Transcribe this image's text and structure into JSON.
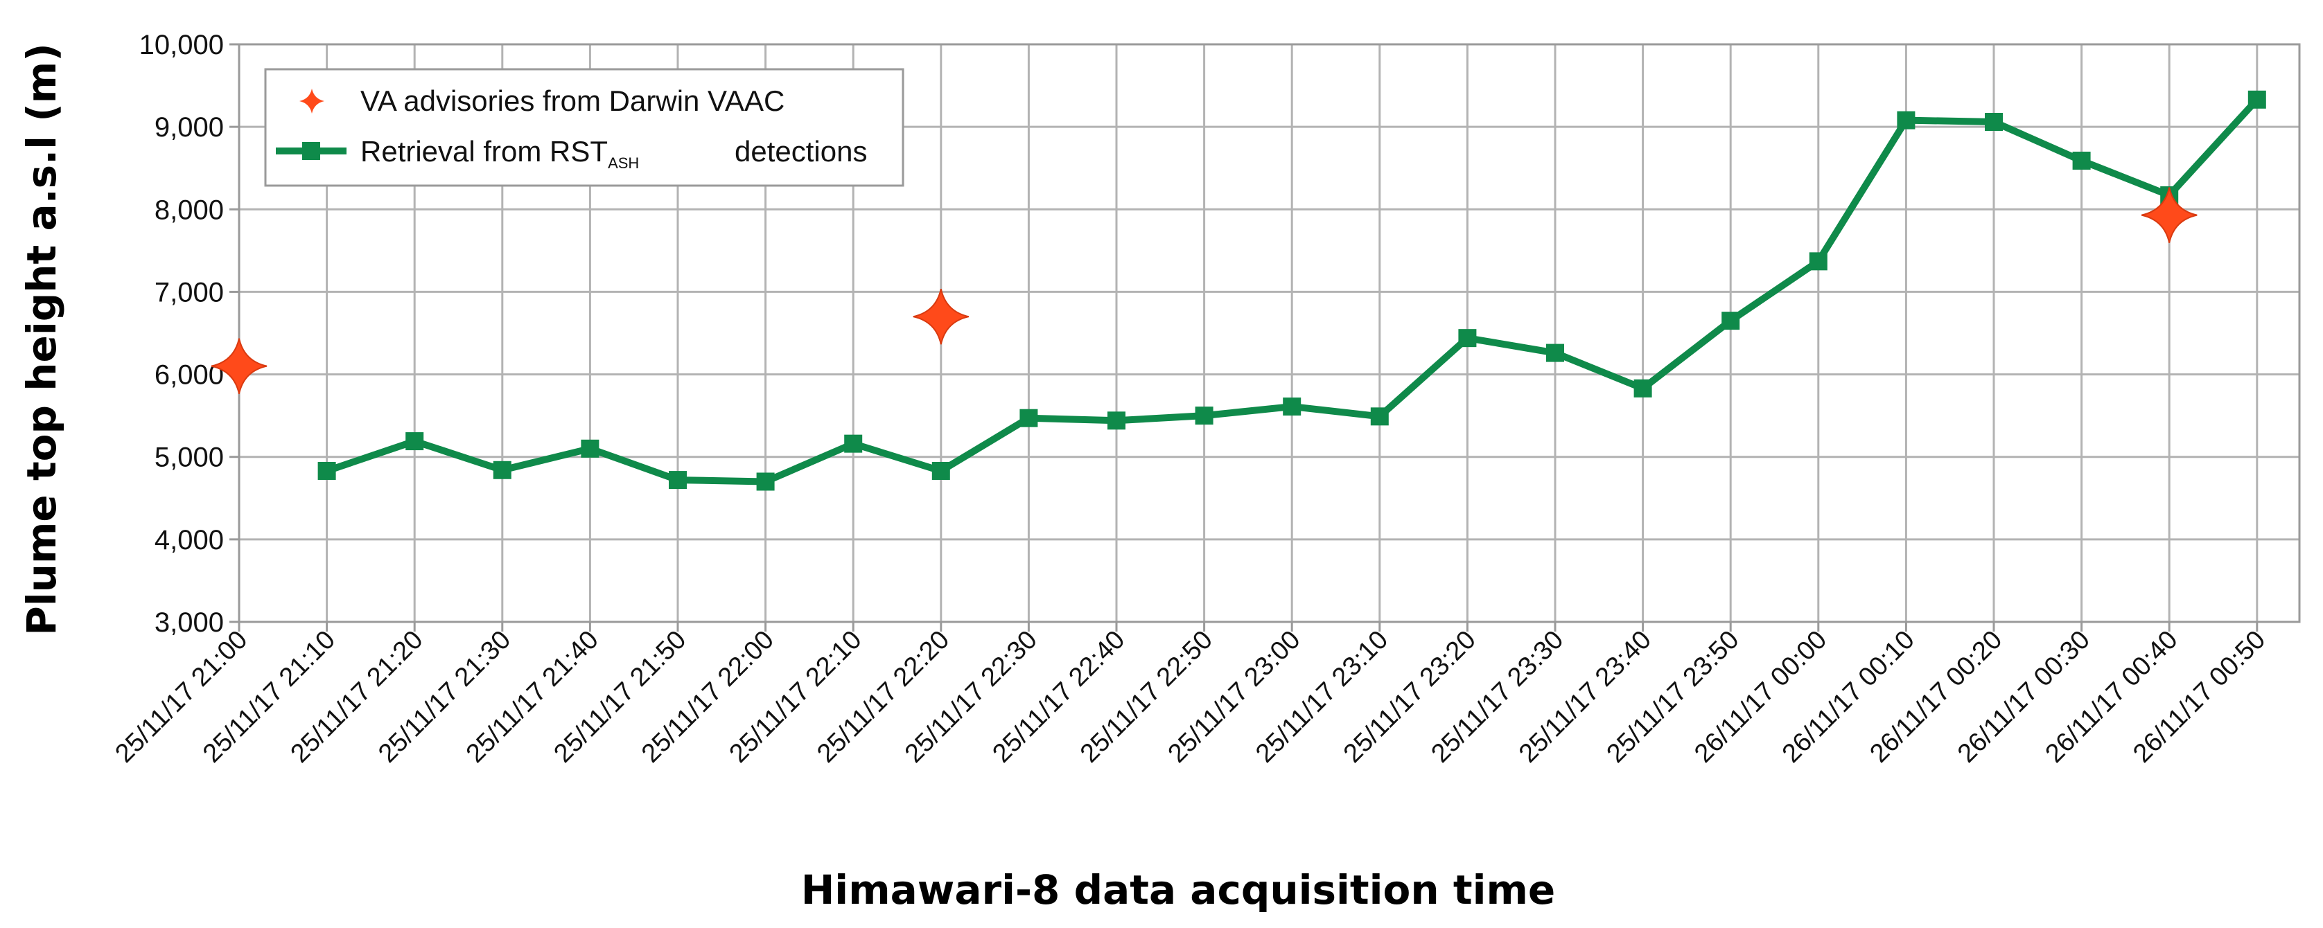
{
  "chart_data": {
    "type": "line",
    "xlabel": "Himawari-8 data acquisition time",
    "ylabel": "Plume top height a.s.l (m)",
    "ylim": [
      3000,
      10000
    ],
    "yticks": [
      "3,000",
      "4,000",
      "5,000",
      "6,000",
      "7,000",
      "8,000",
      "9,000",
      "10,000"
    ],
    "grid": true,
    "legend_position": "top-left",
    "categories": [
      "25/11/17 21:00",
      "25/11/17 21:10",
      "25/11/17 21:20",
      "25/11/17 21:30",
      "25/11/17 21:40",
      "25/11/17 21:50",
      "25/11/17 22:00",
      "25/11/17 22:10",
      "25/11/17 22:20",
      "25/11/17 22:30",
      "25/11/17 22:40",
      "25/11/17 22:50",
      "25/11/17 23:00",
      "25/11/17 23:10",
      "25/11/17 23:20",
      "25/11/17 23:30",
      "25/11/17 23:40",
      "25/11/17 23:50",
      "26/11/17 00:00",
      "26/11/17 00:10",
      "26/11/17 00:20",
      "26/11/17 00:30",
      "26/11/17 00:40",
      "26/11/17 00:50"
    ],
    "series": [
      {
        "name": "VA advisories from Darwin VAAC",
        "kind": "marker",
        "color": "#ff4a1a",
        "points": [
          {
            "x": "25/11/17 21:00",
            "y": 6100
          },
          {
            "x": "25/11/17 22:20",
            "y": 6700
          },
          {
            "x": "26/11/17 00:40",
            "y": 7930
          }
        ]
      },
      {
        "name": "Retrieval from RST",
        "name_subscript": "ASH",
        "name_suffix": "detections",
        "kind": "line",
        "color": "#0f8a4a",
        "values": [
          null,
          4830,
          5190,
          4840,
          5100,
          4720,
          4700,
          5160,
          4830,
          5470,
          5440,
          5500,
          5610,
          5490,
          6440,
          6260,
          5830,
          6650,
          7370,
          9080,
          9060,
          8590,
          8170,
          9330
        ]
      }
    ]
  }
}
